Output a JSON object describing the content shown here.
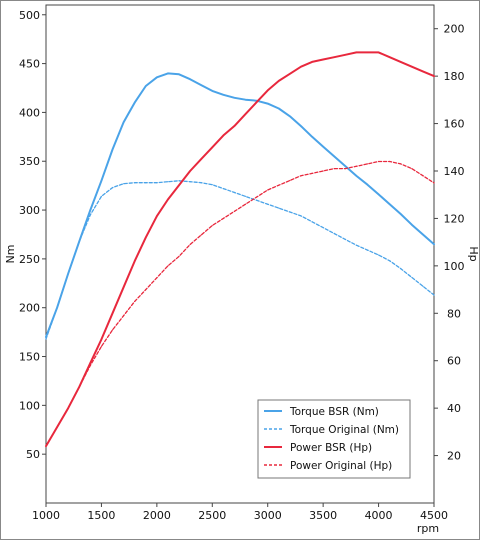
{
  "chart_data": {
    "type": "line",
    "xlabel": "rpm",
    "ylabel_left": "Nm",
    "ylabel_right": "Hp",
    "xlim": [
      1000,
      4500
    ],
    "ylim_left": [
      0,
      510
    ],
    "ylim_right": [
      0,
      210
    ],
    "xticks": [
      1000,
      1500,
      2000,
      2500,
      3000,
      3500,
      4000,
      4500
    ],
    "yticks_left": [
      50,
      100,
      150,
      200,
      250,
      300,
      350,
      400,
      450,
      500
    ],
    "yticks_right": [
      20,
      40,
      60,
      80,
      100,
      120,
      140,
      160,
      180,
      200
    ],
    "legend_position": "bottom-right",
    "grid": false,
    "series": [
      {
        "name": "Torque BSR (Nm)",
        "axis": "left",
        "color": "#4aa3e8",
        "dash": "solid",
        "x": [
          1000,
          1100,
          1200,
          1300,
          1400,
          1500,
          1600,
          1700,
          1800,
          1900,
          2000,
          2100,
          2200,
          2300,
          2400,
          2500,
          2600,
          2700,
          2800,
          2900,
          3000,
          3100,
          3200,
          3300,
          3400,
          3500,
          3600,
          3700,
          3800,
          3900,
          4000,
          4100,
          4200,
          4300,
          4400,
          4500
        ],
        "y": [
          170,
          200,
          235,
          268,
          300,
          330,
          362,
          390,
          410,
          427,
          436,
          440,
          439,
          434,
          428,
          422,
          418,
          415,
          413,
          412,
          409,
          404,
          396,
          386,
          375,
          365,
          355,
          345,
          335,
          326,
          316,
          306,
          296,
          285,
          275,
          265
        ]
      },
      {
        "name": "Torque Original (Nm)",
        "axis": "left",
        "color": "#4aa3e8",
        "dash": "dashed",
        "x": [
          1000,
          1100,
          1200,
          1300,
          1400,
          1500,
          1600,
          1700,
          1800,
          1900,
          2000,
          2100,
          2200,
          2300,
          2400,
          2500,
          2600,
          2700,
          2800,
          2900,
          3000,
          3100,
          3200,
          3300,
          3400,
          3500,
          3600,
          3700,
          3800,
          3900,
          4000,
          4100,
          4200,
          4300,
          4400,
          4500
        ],
        "y": [
          168,
          200,
          235,
          268,
          295,
          314,
          323,
          327,
          328,
          328,
          328,
          329,
          330,
          329,
          328,
          326,
          322,
          318,
          314,
          310,
          306,
          302,
          298,
          294,
          288,
          282,
          276,
          270,
          264,
          259,
          254,
          248,
          240,
          231,
          222,
          213
        ]
      },
      {
        "name": "Power BSR (Hp)",
        "axis": "right",
        "color": "#e8283d",
        "dash": "solid",
        "x": [
          1000,
          1100,
          1200,
          1300,
          1400,
          1500,
          1600,
          1700,
          1800,
          1900,
          2000,
          2100,
          2200,
          2300,
          2400,
          2500,
          2600,
          2700,
          2800,
          2900,
          3000,
          3100,
          3200,
          3300,
          3400,
          3500,
          3600,
          3700,
          3800,
          3900,
          4000,
          4100,
          4200,
          4300,
          4400,
          4500
        ],
        "y": [
          24,
          32,
          40,
          49,
          59,
          69,
          80,
          91,
          102,
          112,
          121,
          128,
          134,
          140,
          145,
          150,
          155,
          159,
          164,
          169,
          174,
          178,
          181,
          184,
          186,
          187,
          188,
          189,
          190,
          190,
          190,
          188,
          186,
          184,
          182,
          180
        ]
      },
      {
        "name": "Power Original (Hp)",
        "axis": "right",
        "color": "#e8283d",
        "dash": "dashed",
        "x": [
          1000,
          1100,
          1200,
          1300,
          1400,
          1500,
          1600,
          1700,
          1800,
          1900,
          2000,
          2100,
          2200,
          2300,
          2400,
          2500,
          2600,
          2700,
          2800,
          2900,
          3000,
          3100,
          3200,
          3300,
          3400,
          3500,
          3600,
          3700,
          3800,
          3900,
          4000,
          4100,
          4200,
          4300,
          4400,
          4500
        ],
        "y": [
          24,
          32,
          40,
          49,
          58,
          66,
          73,
          79,
          85,
          90,
          95,
          100,
          104,
          109,
          113,
          117,
          120,
          123,
          126,
          129,
          132,
          134,
          136,
          138,
          139,
          140,
          141,
          141,
          142,
          143,
          144,
          144,
          143,
          141,
          138,
          135
        ]
      }
    ]
  }
}
